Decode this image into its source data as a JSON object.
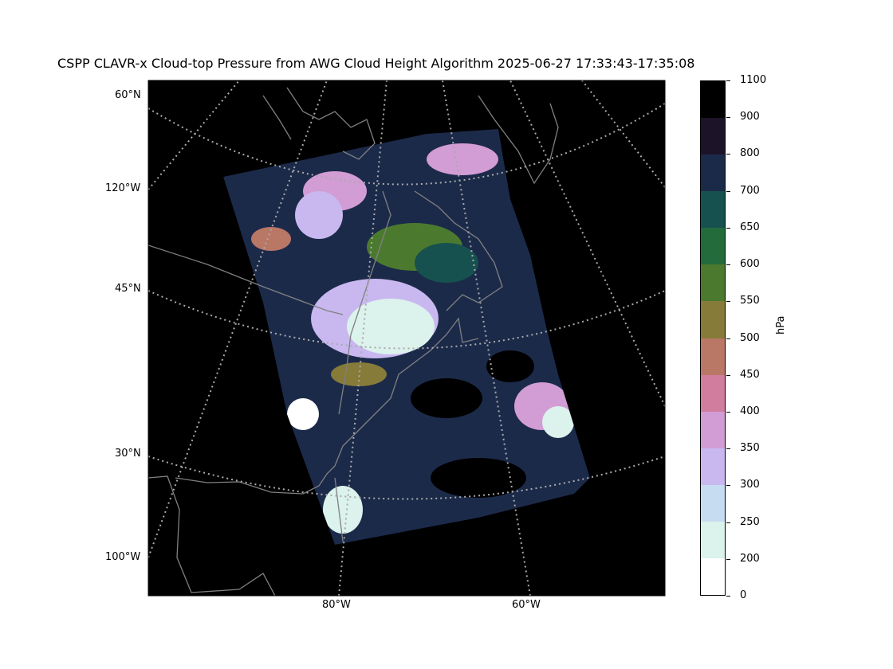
{
  "title": "CSPP CLAVR-x Cloud-top Pressure from AWG Cloud Height Algorithm 2025-06-27 17:33:43-17:35:08",
  "map": {
    "background_color": "#000000",
    "lat_labels": [
      "60°N",
      "45°N",
      "30°N"
    ],
    "lon_left_labels": [
      "120°W",
      "100°W"
    ],
    "lon_bottom_labels": [
      "80°W",
      "60°W"
    ],
    "coastline_color": "#808080",
    "grid_style": "dotted gray"
  },
  "colorbar": {
    "unit": "hPa",
    "tick_labels": [
      "1100",
      "900",
      "800",
      "700",
      "650",
      "600",
      "550",
      "500",
      "450",
      "400",
      "350",
      "300",
      "250",
      "200",
      "0"
    ],
    "colors": [
      "#000000",
      "#1d1329",
      "#1c2a4a",
      "#16514f",
      "#246b3c",
      "#4b7a2f",
      "#867b39",
      "#b97766",
      "#d17d9e",
      "#d29cd4",
      "#c8b8ef",
      "#c6dcf1",
      "#dcf2ec",
      "#ffffff"
    ]
  }
}
